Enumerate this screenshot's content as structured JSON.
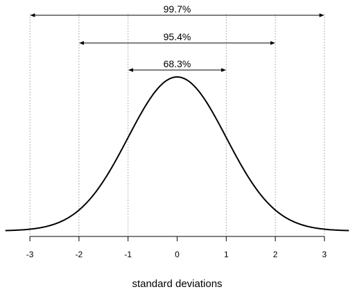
{
  "chart_data": {
    "type": "line",
    "title": "",
    "xlabel": "standard deviations",
    "ylabel": "",
    "xlim": [
      -3.5,
      3.5
    ],
    "ylim": [
      0,
      0.4
    ],
    "grid": false,
    "x_ticks": [
      -3,
      -2,
      -1,
      0,
      1,
      2,
      3
    ],
    "x_tick_labels": [
      "-3",
      "-2",
      "-1",
      "0",
      "1",
      "2",
      "3"
    ],
    "guides": [
      -3,
      -2,
      -1,
      1,
      2,
      3
    ],
    "series": [
      {
        "curve": "standard normal density",
        "x_range": [
          -3.5,
          3.5
        ],
        "color": "#000000"
      }
    ],
    "ranges": [
      {
        "label": "99.7%",
        "from": -3,
        "to": 3
      },
      {
        "label": "95.4%",
        "from": -2,
        "to": 2
      },
      {
        "label": "68.3%",
        "from": -1,
        "to": 1
      }
    ]
  }
}
